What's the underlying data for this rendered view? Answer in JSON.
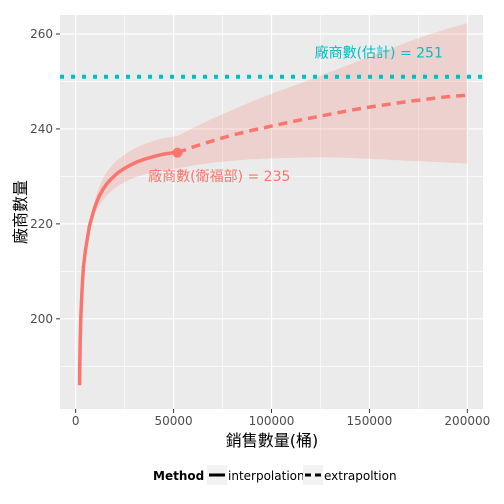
{
  "chart_data": {
    "type": "line",
    "xlabel": "銷售數量(桶)",
    "ylabel": "廠商數量",
    "xlim": [
      -8000,
      208000
    ],
    "ylim": [
      181,
      264
    ],
    "x_ticks": [
      0,
      50000,
      100000,
      150000,
      200000
    ],
    "x_tick_labels": [
      "0",
      "50000",
      "100000",
      "150000",
      "200000"
    ],
    "y_ticks": [
      200,
      220,
      240,
      260
    ],
    "y_tick_labels": [
      "200",
      "220",
      "240",
      "260"
    ],
    "grid": true,
    "legend": {
      "position": "bottom",
      "title": "Method",
      "entries": [
        {
          "label": "interpolation",
          "style": "solid"
        },
        {
          "label": "extrapoltion",
          "style": "dashed"
        }
      ]
    },
    "colors": {
      "line": "#F8766D",
      "ribbon": "#F8766D",
      "asymptote": "#00BFC4",
      "panel": "#EBEBEB",
      "grid": "#FFFFFF"
    },
    "series": [
      {
        "name": "interpolation",
        "style": "solid",
        "x": [
          2000,
          2100,
          2300,
          2600,
          3000,
          3500,
          4000,
          5000,
          6000,
          7000,
          8000,
          9000,
          10000,
          12000,
          14000,
          16000,
          18000,
          20000,
          22000,
          25000,
          28000,
          31000,
          35000,
          40000,
          45000,
          50000,
          52000
        ],
        "y": [
          186,
          190,
          195,
          200,
          204,
          208,
          211,
          214.5,
          217,
          219.5,
          221,
          222.5,
          223.8,
          225.8,
          227.3,
          228.5,
          229.4,
          230.2,
          230.9,
          231.7,
          232.4,
          233,
          233.6,
          234.2,
          234.7,
          235,
          235
        ],
        "ribbon_lower": [
          186,
          190,
          195,
          200,
          204,
          208,
          211,
          214,
          216.3,
          218.5,
          220,
          221.2,
          222.3,
          223.9,
          225,
          226,
          226.8,
          227.5,
          228.1,
          228.8,
          229.4,
          229.9,
          230.4,
          230.9,
          231.3,
          231.6,
          231.7
        ],
        "ribbon_upper": [
          186,
          190,
          195,
          200,
          204,
          208,
          211,
          215,
          217.7,
          220.5,
          222,
          223.8,
          225.3,
          227.7,
          229.6,
          231,
          232,
          232.9,
          233.7,
          234.6,
          235.4,
          236.1,
          236.8,
          237.5,
          238.1,
          238.4,
          238.5
        ]
      },
      {
        "name": "extrapoltion",
        "style": "dashed",
        "x": [
          52000,
          60000,
          70000,
          80000,
          90000,
          100000,
          110000,
          120000,
          130000,
          140000,
          150000,
          160000,
          170000,
          180000,
          190000,
          200000
        ],
        "y": [
          235,
          236.2,
          237.5,
          238.7,
          239.7,
          240.6,
          241.5,
          242.3,
          243.1,
          243.9,
          244.6,
          245.2,
          245.8,
          246.3,
          246.8,
          247.1
        ],
        "ribbon_lower": [
          231.7,
          232.3,
          232.9,
          233.3,
          233.6,
          233.8,
          233.9,
          234,
          234,
          233.9,
          233.7,
          233.5,
          233.3,
          233.1,
          232.9,
          232.7
        ],
        "ribbon_upper": [
          238.5,
          240.2,
          242.2,
          244,
          245.8,
          247.4,
          248.9,
          250.4,
          252,
          253.6,
          255.2,
          256.8,
          258.4,
          259.8,
          261.1,
          262.3
        ]
      }
    ],
    "observed_point": {
      "x": 52000,
      "y": 235
    },
    "asymptote": {
      "y": 251,
      "style": "dotted",
      "label": "廠商數(估計) = 251"
    },
    "annotations": [
      {
        "text": "廠商數(衛福部) = 235",
        "x": 37000,
        "y": 229,
        "color": "#F8766D"
      },
      {
        "text": "廠商數(估計) = 251",
        "x": 122000,
        "y": 255,
        "color": "#00BFC4"
      }
    ]
  }
}
